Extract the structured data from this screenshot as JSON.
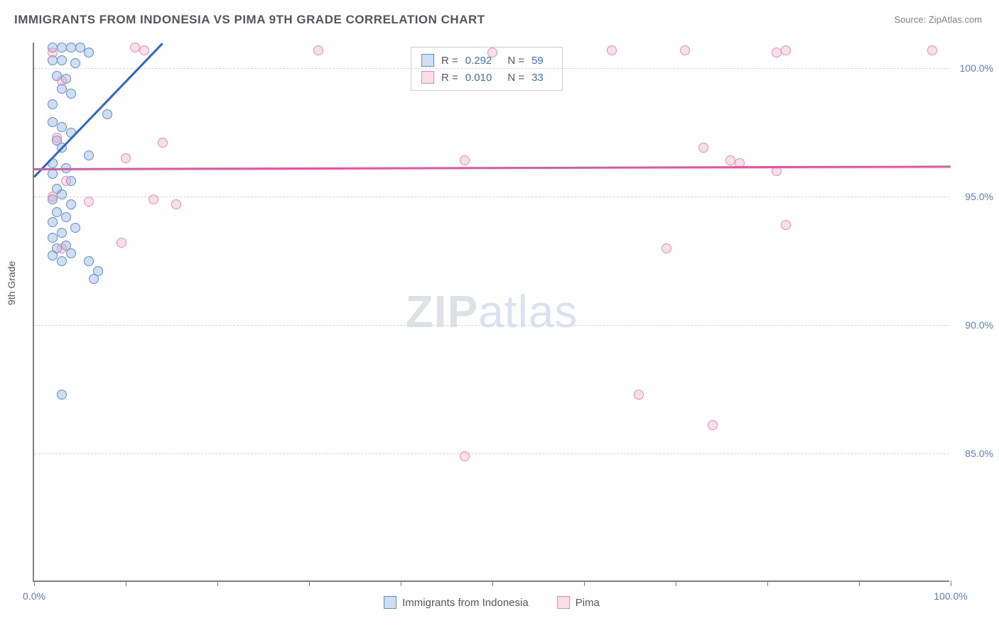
{
  "title": "IMMIGRANTS FROM INDONESIA VS PIMA 9TH GRADE CORRELATION CHART",
  "source": "Source: ZipAtlas.com",
  "watermark": {
    "part1": "ZIP",
    "part2": "atlas"
  },
  "chart": {
    "type": "scatter",
    "ylabel": "9th Grade",
    "xlim": [
      0,
      100
    ],
    "ylim": [
      80,
      101
    ],
    "xticks": [
      0,
      10,
      20,
      30,
      40,
      50,
      60,
      70,
      80,
      90,
      100
    ],
    "xtick_labels": {
      "0": "0.0%",
      "100": "100.0%"
    },
    "yticks": [
      85,
      90,
      95,
      100
    ],
    "ytick_labels": {
      "85": "85.0%",
      "90": "90.0%",
      "95": "95.0%",
      "100": "100.0%"
    },
    "background_color": "#ffffff",
    "grid_color": "#d8d8dc",
    "axis_color": "#808084",
    "series": [
      {
        "name": "Immigrants from Indonesia",
        "fill": "rgba(120,160,220,0.35)",
        "stroke": "#5a8fd8",
        "trend_color": "#2a66d0",
        "r_label": "R =",
        "r_value": "0.292",
        "n_label": "N =",
        "n_value": "59",
        "trend": {
          "x1": 0,
          "y1": 95.8,
          "x2": 14,
          "y2": 101
        },
        "points": [
          [
            2,
            100.8
          ],
          [
            3,
            100.8
          ],
          [
            4,
            100.8
          ],
          [
            5,
            100.8
          ],
          [
            6,
            100.6
          ],
          [
            2,
            100.3
          ],
          [
            3,
            100.3
          ],
          [
            4.5,
            100.2
          ],
          [
            2.5,
            99.7
          ],
          [
            3.5,
            99.6
          ],
          [
            3,
            99.2
          ],
          [
            4,
            99.0
          ],
          [
            2,
            98.6
          ],
          [
            8,
            98.2
          ],
          [
            2,
            97.9
          ],
          [
            3,
            97.7
          ],
          [
            4,
            97.5
          ],
          [
            2.5,
            97.2
          ],
          [
            3,
            96.9
          ],
          [
            6,
            96.6
          ],
          [
            2,
            96.3
          ],
          [
            3.5,
            96.1
          ],
          [
            2,
            95.9
          ],
          [
            4,
            95.6
          ],
          [
            2.5,
            95.3
          ],
          [
            3,
            95.1
          ],
          [
            2,
            94.9
          ],
          [
            4,
            94.7
          ],
          [
            2.5,
            94.4
          ],
          [
            3.5,
            94.2
          ],
          [
            2,
            94.0
          ],
          [
            4.5,
            93.8
          ],
          [
            3,
            93.6
          ],
          [
            2,
            93.4
          ],
          [
            3.5,
            93.1
          ],
          [
            2.5,
            93.0
          ],
          [
            4,
            92.8
          ],
          [
            2,
            92.7
          ],
          [
            3,
            92.5
          ],
          [
            6,
            92.5
          ],
          [
            7,
            92.1
          ],
          [
            6.5,
            91.8
          ],
          [
            3,
            87.3
          ]
        ]
      },
      {
        "name": "Pima",
        "fill": "rgba(240,150,180,0.30)",
        "stroke": "#e58fb0",
        "trend_color": "#e454a0",
        "r_label": "R =",
        "r_value": "0.010",
        "n_label": "N =",
        "n_value": "33",
        "trend": {
          "x1": 0,
          "y1": 96.1,
          "x2": 100,
          "y2": 96.2
        },
        "points": [
          [
            2,
            100.6
          ],
          [
            11,
            100.8
          ],
          [
            12,
            100.7
          ],
          [
            31,
            100.7
          ],
          [
            50,
            100.6
          ],
          [
            63,
            100.7
          ],
          [
            71,
            100.7
          ],
          [
            81,
            100.6
          ],
          [
            82,
            100.7
          ],
          [
            98,
            100.7
          ],
          [
            3,
            99.5
          ],
          [
            2.5,
            97.3
          ],
          [
            14,
            97.1
          ],
          [
            10,
            96.5
          ],
          [
            47,
            96.4
          ],
          [
            73,
            96.9
          ],
          [
            76,
            96.4
          ],
          [
            77,
            96.3
          ],
          [
            81,
            96.0
          ],
          [
            2,
            95.0
          ],
          [
            3.5,
            95.6
          ],
          [
            6,
            94.8
          ],
          [
            13,
            94.9
          ],
          [
            15.5,
            94.7
          ],
          [
            82,
            93.9
          ],
          [
            3,
            93.0
          ],
          [
            9.5,
            93.2
          ],
          [
            69,
            93.0
          ],
          [
            66,
            87.3
          ],
          [
            74,
            86.1
          ],
          [
            47,
            84.9
          ]
        ]
      }
    ]
  },
  "legend": {
    "series1": "Immigrants from Indonesia",
    "series2": "Pima"
  }
}
